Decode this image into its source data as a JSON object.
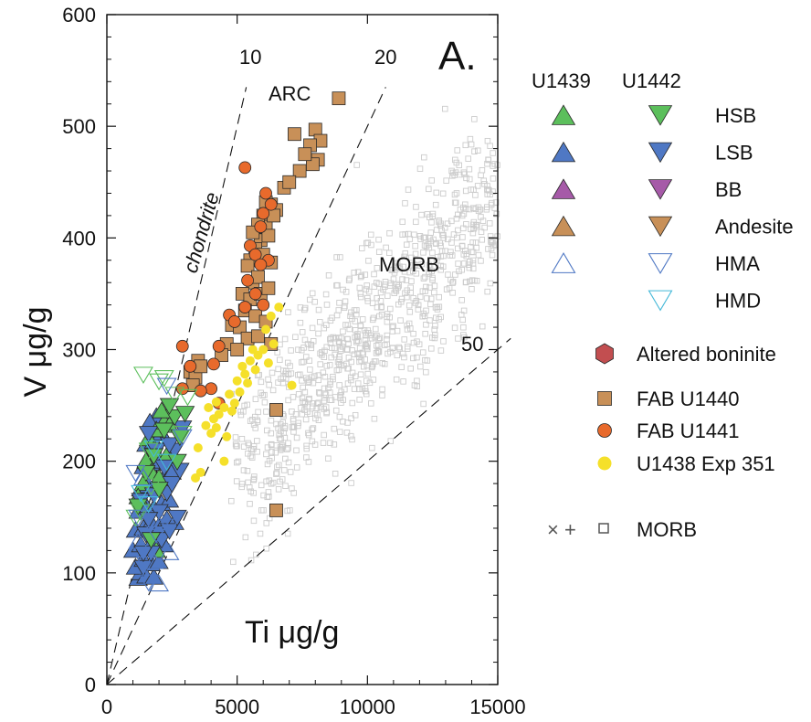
{
  "chart_data": {
    "type": "scatter",
    "panel_label": "A.",
    "xlabel_inside": "Ti μg/g",
    "ylabel": "V μg/g",
    "xlim": [
      0,
      15000
    ],
    "ylim": [
      0,
      600
    ],
    "x_ticks": [
      0,
      5000,
      10000,
      15000
    ],
    "y_ticks": [
      0,
      100,
      200,
      300,
      400,
      500,
      600
    ],
    "grid": false,
    "reference_lines": [
      {
        "label": "10",
        "ratio": 10
      },
      {
        "label": "20",
        "ratio": 20
      },
      {
        "label": "50",
        "ratio": 50
      }
    ],
    "field_labels": [
      {
        "text": "chondrite"
      },
      {
        "text": "ARC"
      },
      {
        "text": "MORB"
      }
    ],
    "legend": {
      "position": "right",
      "col_headers": [
        "U1439",
        "U1442"
      ],
      "types": [
        {
          "label": "HSB",
          "color": "#5cbf5c",
          "filled": true,
          "u1439": true
        },
        {
          "label": "LSB",
          "color": "#4f78c4",
          "filled": true,
          "u1439": true
        },
        {
          "label": "BB",
          "color": "#a65aa8",
          "filled": true,
          "u1439": true
        },
        {
          "label": "Andesite",
          "color": "#c89058",
          "filled": true,
          "u1439": true
        },
        {
          "label": "HMA",
          "color": "#4f78c4",
          "filled": false,
          "u1439": true
        },
        {
          "label": "HMD",
          "color": "#43b8d8",
          "filled": false,
          "u1439": false
        }
      ],
      "other": [
        {
          "label": "Altered boninite",
          "marker": "hexagon",
          "color": "#c24e50"
        },
        {
          "label": "FAB U1440",
          "marker": "square",
          "color": "#c89058"
        },
        {
          "label": "FAB U1441",
          "marker": "circle",
          "color": "#e86a2c"
        },
        {
          "label": "U1438 Exp 351",
          "marker": "circle",
          "color": "#f5e02a"
        }
      ],
      "morb_label": "MORB",
      "morb_symbols": [
        "×",
        "+",
        "□"
      ]
    },
    "series": [
      {
        "name": "FAB U1440",
        "marker": "square",
        "color": "#c89058",
        "points": [
          [
            8900,
            525
          ],
          [
            7200,
            493
          ],
          [
            8000,
            497
          ],
          [
            8200,
            487
          ],
          [
            7800,
            483
          ],
          [
            8100,
            470
          ],
          [
            7900,
            466
          ],
          [
            7400,
            460
          ],
          [
            7600,
            475
          ],
          [
            6800,
            445
          ],
          [
            7000,
            450
          ],
          [
            6300,
            430
          ],
          [
            6000,
            420
          ],
          [
            6500,
            425
          ],
          [
            6100,
            410
          ],
          [
            5800,
            412
          ],
          [
            5900,
            398
          ],
          [
            6200,
            402
          ],
          [
            5600,
            405
          ],
          [
            5700,
            390
          ],
          [
            5500,
            380
          ],
          [
            6000,
            385
          ],
          [
            6300,
            378
          ],
          [
            5400,
            375
          ],
          [
            5600,
            360
          ],
          [
            5800,
            365
          ],
          [
            5200,
            350
          ],
          [
            5500,
            345
          ],
          [
            5900,
            350
          ],
          [
            6200,
            355
          ],
          [
            5300,
            335
          ],
          [
            5700,
            330
          ],
          [
            6100,
            325
          ],
          [
            4800,
            322
          ],
          [
            5100,
            320
          ],
          [
            5400,
            310
          ],
          [
            5800,
            312
          ],
          [
            4600,
            305
          ],
          [
            5000,
            300
          ],
          [
            4400,
            295
          ],
          [
            6300,
            305
          ],
          [
            3200,
            280
          ],
          [
            3500,
            290
          ],
          [
            3400,
            275
          ],
          [
            3600,
            285
          ],
          [
            3300,
            268
          ],
          [
            6500,
            246
          ],
          [
            6500,
            156
          ],
          [
            6400,
            420
          ],
          [
            6100,
            432
          ]
        ]
      },
      {
        "name": "FAB U1441",
        "marker": "circle",
        "color": "#e86a2c",
        "points": [
          [
            5300,
            463
          ],
          [
            6100,
            440
          ],
          [
            6300,
            430
          ],
          [
            6000,
            422
          ],
          [
            5900,
            410
          ],
          [
            5500,
            393
          ],
          [
            5700,
            385
          ],
          [
            6200,
            380
          ],
          [
            5900,
            376
          ],
          [
            5400,
            362
          ],
          [
            5700,
            350
          ],
          [
            5300,
            338
          ],
          [
            4700,
            331
          ],
          [
            4900,
            325
          ],
          [
            6000,
            340
          ],
          [
            2900,
            303
          ],
          [
            4300,
            303
          ],
          [
            3200,
            285
          ],
          [
            4100,
            287
          ],
          [
            4000,
            265
          ],
          [
            3600,
            263
          ],
          [
            4300,
            252
          ],
          [
            2900,
            265
          ]
        ]
      },
      {
        "name": "U1438 Exp 351",
        "marker": "circle",
        "color": "#f5e02a",
        "points": [
          [
            6600,
            338
          ],
          [
            6300,
            330
          ],
          [
            6100,
            318
          ],
          [
            6400,
            305
          ],
          [
            6000,
            300
          ],
          [
            5800,
            295
          ],
          [
            6200,
            288
          ],
          [
            5500,
            290
          ],
          [
            5700,
            282
          ],
          [
            5300,
            278
          ],
          [
            5400,
            270
          ],
          [
            5000,
            272
          ],
          [
            5100,
            262
          ],
          [
            4700,
            260
          ],
          [
            4900,
            252
          ],
          [
            4500,
            248
          ],
          [
            4200,
            253
          ],
          [
            4300,
            242
          ],
          [
            3900,
            248
          ],
          [
            4100,
            238
          ],
          [
            3800,
            232
          ],
          [
            4000,
            225
          ],
          [
            4600,
            222
          ],
          [
            3500,
            212
          ],
          [
            4500,
            200
          ],
          [
            3600,
            190
          ],
          [
            3400,
            185
          ],
          [
            7100,
            268
          ],
          [
            4200,
            230
          ],
          [
            4800,
            245
          ],
          [
            5200,
            285
          ],
          [
            5600,
            300
          ]
        ]
      },
      {
        "name": "U1439 LSB",
        "marker": "triangle-up",
        "color": "#4f78c4",
        "filled": true,
        "points": [
          [
            1200,
            95
          ],
          [
            1300,
            100
          ],
          [
            1500,
            97
          ],
          [
            1800,
            96
          ],
          [
            1100,
            105
          ],
          [
            1400,
            112
          ],
          [
            1700,
            108
          ],
          [
            2000,
            110
          ],
          [
            1000,
            120
          ],
          [
            1300,
            125
          ],
          [
            1600,
            122
          ],
          [
            1900,
            128
          ],
          [
            2200,
            125
          ],
          [
            1100,
            138
          ],
          [
            1400,
            140
          ],
          [
            1700,
            145
          ],
          [
            2000,
            142
          ],
          [
            2300,
            148
          ],
          [
            2600,
            145
          ],
          [
            1200,
            155
          ],
          [
            1500,
            160
          ],
          [
            1800,
            158
          ],
          [
            2100,
            162
          ],
          [
            2400,
            165
          ],
          [
            1300,
            175
          ],
          [
            1600,
            178
          ],
          [
            1900,
            180
          ],
          [
            2200,
            185
          ],
          [
            2500,
            190
          ],
          [
            1400,
            195
          ],
          [
            1700,
            198
          ],
          [
            2000,
            200
          ],
          [
            1500,
            215
          ],
          [
            1800,
            218
          ],
          [
            2100,
            225
          ],
          [
            1900,
            240
          ],
          [
            1650,
            235
          ]
        ]
      },
      {
        "name": "U1439 HSB",
        "marker": "triangle-up",
        "color": "#5cbf5c",
        "filled": true,
        "points": [
          [
            1600,
            220
          ],
          [
            1900,
            228
          ],
          [
            2200,
            235
          ],
          [
            2400,
            232
          ],
          [
            2100,
            245
          ],
          [
            1800,
            210
          ],
          [
            1500,
            200
          ],
          [
            2300,
            205
          ],
          [
            1700,
            190
          ],
          [
            1400,
            180
          ],
          [
            1200,
            168
          ],
          [
            2000,
            185
          ],
          [
            1900,
            120
          ]
        ]
      },
      {
        "name": "U1442 LSB",
        "marker": "triangle-down",
        "color": "#4f78c4",
        "filled": true,
        "points": [
          [
            1400,
            105
          ],
          [
            1700,
            118
          ],
          [
            2100,
            130
          ],
          [
            2400,
            138
          ],
          [
            2700,
            150
          ],
          [
            1500,
            135
          ],
          [
            2000,
            155
          ],
          [
            1600,
            148
          ],
          [
            2300,
            172
          ],
          [
            2500,
            180
          ],
          [
            2800,
            192
          ],
          [
            1300,
            165
          ],
          [
            1800,
            170
          ],
          [
            2200,
            195
          ],
          [
            2600,
            210
          ],
          [
            1600,
            225
          ],
          [
            1900,
            210
          ],
          [
            2900,
            230
          ],
          [
            2400,
            215
          ],
          [
            1400,
            118
          ]
        ]
      },
      {
        "name": "U1442 HSB",
        "marker": "triangle-down",
        "color": "#5cbf5c",
        "filled": true,
        "points": [
          [
            2600,
            240
          ],
          [
            2200,
            228
          ],
          [
            2800,
            222
          ],
          [
            1800,
            205
          ],
          [
            1500,
            190
          ],
          [
            2000,
            175
          ],
          [
            1200,
            160
          ],
          [
            2400,
            250
          ],
          [
            3000,
            243
          ],
          [
            2700,
            200
          ],
          [
            1700,
            130
          ]
        ]
      },
      {
        "name": "U1442 HSB outline",
        "marker": "triangle-down",
        "color": "#5cbf5c",
        "filled": false,
        "points": [
          [
            1400,
            278
          ],
          [
            2200,
            275
          ],
          [
            2600,
            260
          ],
          [
            3100,
            258
          ],
          [
            1300,
            155
          ],
          [
            1100,
            150
          ],
          [
            1700,
            178
          ],
          [
            2900,
            225
          ],
          [
            1600,
            210
          ],
          [
            2000,
            272
          ]
        ]
      },
      {
        "name": "U1442 HMA",
        "marker": "triangle-down",
        "color": "#4f78c4",
        "filled": false,
        "points": [
          [
            1500,
            108
          ],
          [
            1900,
            135
          ],
          [
            2400,
            142
          ],
          [
            1600,
            92
          ],
          [
            2900,
            222
          ],
          [
            2300,
            268
          ],
          [
            1200,
            150
          ],
          [
            1100,
            190
          ]
        ]
      },
      {
        "name": "U1439 HMA",
        "marker": "triangle-up",
        "color": "#4f78c4",
        "filled": false,
        "points": [
          [
            2000,
            90
          ],
          [
            1200,
            128
          ],
          [
            1800,
            110
          ],
          [
            2400,
            118
          ],
          [
            1400,
            185
          ],
          [
            2100,
            145
          ]
        ]
      },
      {
        "name": "U1442 HMD",
        "marker": "triangle-down",
        "color": "#43b8d8",
        "filled": false,
        "points": [
          [
            1800,
            212
          ],
          [
            1300,
            172
          ],
          [
            2300,
            200
          ],
          [
            1600,
            162
          ]
        ]
      }
    ],
    "morb_cloud": {
      "marker": "square-open",
      "color": "#cccccc",
      "point_count": 900,
      "approx_x_range": [
        4500,
        15000
      ],
      "approx_y_range": [
        90,
        520
      ]
    }
  }
}
